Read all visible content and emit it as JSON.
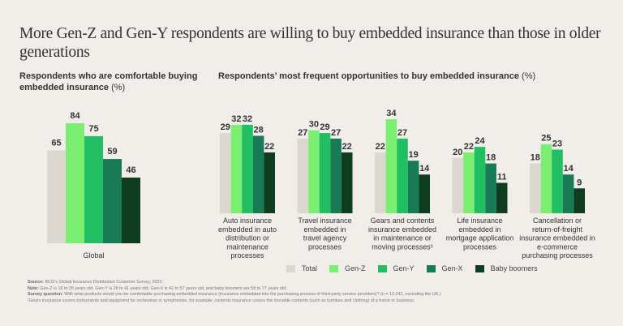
{
  "title": "More Gen-Z and Gen-Y respondents are willing to buy embedded insurance than those in older generations",
  "left_panel": {
    "subtitle": "Respondents who are comfortable buying embedded insurance",
    "unit": "(%)"
  },
  "right_panel": {
    "subtitle": "Respondents’ most frequent opportunities to buy embedded insurance",
    "unit": "(%)"
  },
  "colors": {
    "background": "#f1eeea",
    "Total": "#ddd8cf",
    "Gen-Z": "#7aef72",
    "Gen-Y": "#21bf61",
    "Gen-X": "#197a56",
    "Baby boomers": "#0d3d1e"
  },
  "legend": [
    {
      "label": "Total",
      "color": "#ddd8cf"
    },
    {
      "label": "Gen-Z",
      "color": "#7aef72"
    },
    {
      "label": "Gen-Y",
      "color": "#21bf61"
    },
    {
      "label": "Gen-X",
      "color": "#197a56"
    },
    {
      "label": "Baby boomers",
      "color": "#0d3d1e"
    }
  ],
  "chart_data": [
    {
      "type": "bar",
      "title": "Respondents who are comfortable buying embedded insurance (%)",
      "categories": [
        "Global"
      ],
      "series": [
        {
          "name": "Total",
          "values": [
            65
          ]
        },
        {
          "name": "Gen-Z",
          "values": [
            84
          ]
        },
        {
          "name": "Gen-Y",
          "values": [
            75
          ]
        },
        {
          "name": "Gen-X",
          "values": [
            59
          ]
        },
        {
          "name": "Baby boomers",
          "values": [
            46
          ]
        }
      ],
      "xlabel": "",
      "ylabel": "",
      "ylim": [
        0,
        84
      ],
      "grid": false,
      "legend": "bottom"
    },
    {
      "type": "bar",
      "title": "Respondents’ most frequent opportunities to buy embedded insurance (%)",
      "categories": [
        [
          "Auto insurance",
          "embedded in auto",
          "distribution or",
          "maintenance",
          "processes"
        ],
        [
          "Travel insurance",
          "embedded in",
          "travel agency",
          "processes"
        ],
        [
          "Gears and contents",
          "insurance embedded",
          "in maintenance or",
          "moving processes¹"
        ],
        [
          "Life insurance",
          "embedded in",
          "mortgage application",
          "processes"
        ],
        [
          "Cancellation or",
          "return-of-freight",
          "insurance embedded in",
          "e-commerce",
          "purchasing processes"
        ]
      ],
      "series": [
        {
          "name": "Total",
          "values": [
            29,
            27,
            22,
            20,
            18
          ]
        },
        {
          "name": "Gen-Z",
          "values": [
            32,
            30,
            34,
            22,
            25
          ]
        },
        {
          "name": "Gen-Y",
          "values": [
            32,
            29,
            27,
            24,
            23
          ]
        },
        {
          "name": "Gen-X",
          "values": [
            28,
            27,
            19,
            18,
            14
          ]
        },
        {
          "name": "Baby boomers",
          "values": [
            22,
            22,
            14,
            11,
            9
          ]
        }
      ],
      "xlabel": "",
      "ylabel": "",
      "ylim": [
        0,
        34
      ],
      "grid": false,
      "legend": "bottom"
    }
  ],
  "footnotes": {
    "source_label": "Source:",
    "source": "BCG’s Global Insurance Distribution Customer Survey, 2022.",
    "note_label": "Note:",
    "note": "Gen-Z is 18 to 25 years old, Gen-Y is 26 to 41 years old, Gen-X is 42 to 57 years old, and baby boomers are 58 to 77 years old.",
    "question_label": "Survey question:",
    "question": "With what products would you be comfortable purchasing embedded insurance (insurance embedded into the purchasing process of third-party service providers)? (n = 12,242, excluding the UK.)",
    "footnote1": "¹Gears insurance covers instruments and equipment for orchestras or symphonies, for example; contents insurance covers the movable contents (such as furniture and clothing) of a home or business."
  }
}
